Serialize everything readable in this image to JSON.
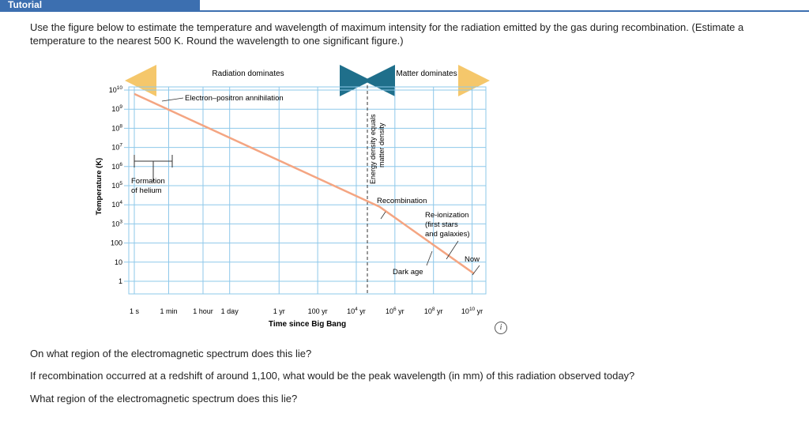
{
  "tab": {
    "title": "Tutorial"
  },
  "intro": "Use the figure below to estimate the temperature and wavelength of maximum intensity for the radiation emitted by the gas during recombination. (Estimate a temperature to the nearest 500 K. Round the wavelength to one significant figure.)",
  "questions": [
    "On what region of the electromagnetic spectrum does this lie?",
    "If recombination occurred at a redshift of around 1,100, what would be the peak wavelength (in mm) of this radiation observed today?",
    "What region of the electromagnetic spectrum does this lie?"
  ],
  "info_icon": "info-icon",
  "chart_data": {
    "type": "line",
    "ylabel": "Temperature (K)",
    "xlabel": "Time since Big Bang",
    "y_ticks": [
      "10^10",
      "10^9",
      "10^8",
      "10^7",
      "10^6",
      "10^5",
      "10^4",
      "10^3",
      "100",
      "10",
      "1"
    ],
    "x_ticks": [
      "1 s",
      "1 min",
      "1 hour",
      "1 day",
      "1 yr",
      "100 yr",
      "10^4 yr",
      "10^6 yr",
      "10^8 yr",
      "10^10 yr"
    ],
    "top_labels": {
      "left": "Radiation dominates",
      "right": "Matter dominates"
    },
    "divider_label_line1": "Energy density equals",
    "divider_label_line2": "matter density",
    "annotations": {
      "electron_positron": "Electron–positron annihilation",
      "formation1": "Formation",
      "formation2": "of helium",
      "recombination": "Recombination",
      "reion1": "Re-ionization",
      "reion2": "(first stars",
      "reion3": "and galaxies)",
      "dark_age": "Dark age",
      "now": "Now"
    },
    "log10_time_s": [
      0,
      1.78,
      3.56,
      4.94,
      7.5,
      9.5,
      11.5,
      13.5,
      15.5,
      17.5
    ],
    "series": [
      {
        "log10_time_s": [
          0,
          12.7,
          17.6
        ],
        "log10_T": [
          9.8,
          3.9,
          0.4
        ]
      }
    ],
    "colors": {
      "line": "#f4a582",
      "grid": "#8ec8ea",
      "radiation_arrow": "#f5c76b",
      "divider_arrow": "#1f6f8b",
      "matter_arrow": "#f5c76b",
      "tab": "#3c6fb0"
    }
  }
}
